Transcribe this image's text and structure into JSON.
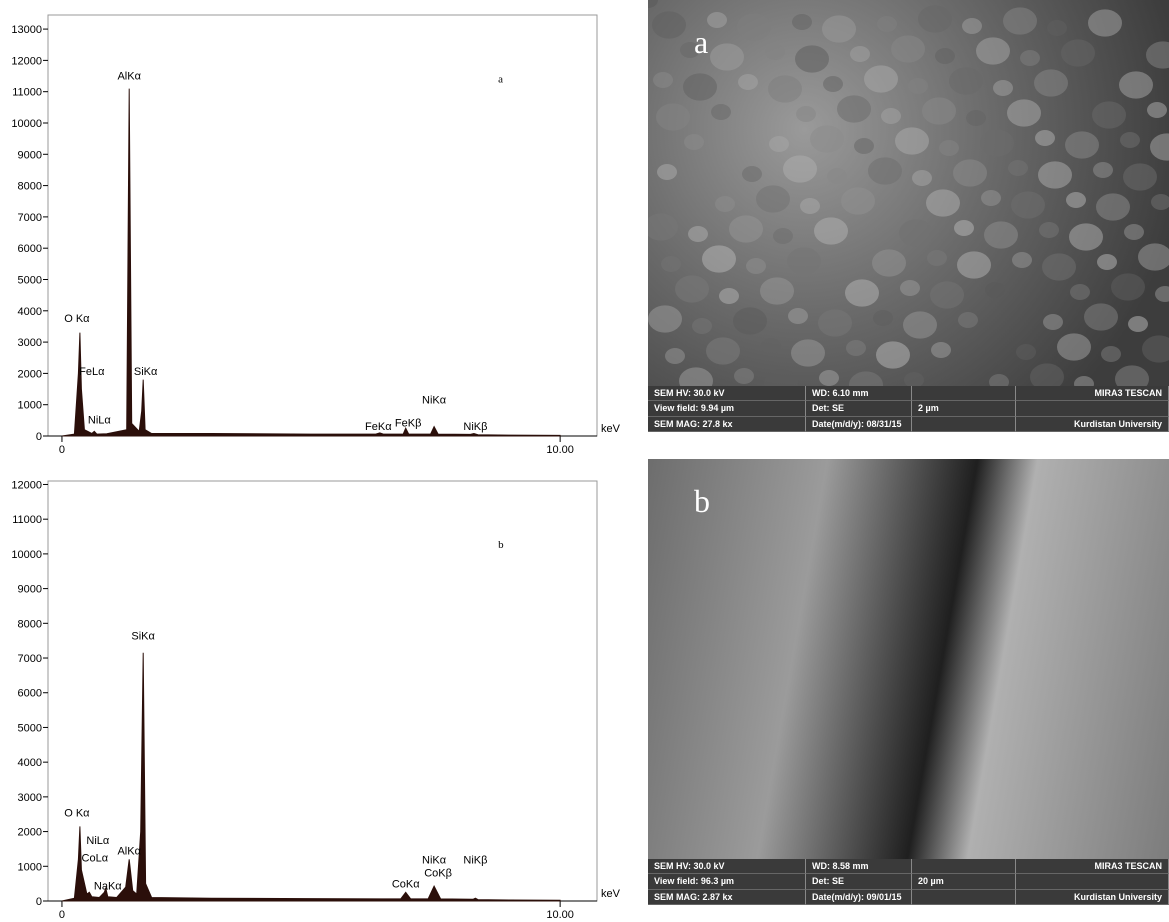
{
  "chart_data": [
    {
      "type": "area",
      "title": "a",
      "color": "#2b0f0a",
      "x_label": "keV",
      "x": [
        0,
        0.25,
        0.33,
        0.36,
        0.39,
        0.45,
        0.6,
        0.65,
        0.7,
        0.9,
        1.3,
        1.35,
        1.4,
        1.55,
        1.6,
        1.63,
        1.67,
        1.8,
        3,
        5,
        6.3,
        6.38,
        6.45,
        6.85,
        6.9,
        6.96,
        7.4,
        7.47,
        7.55,
        8.2,
        8.27,
        8.35,
        9,
        10
      ],
      "values": [
        0,
        60,
        2000,
        3300,
        1500,
        200,
        80,
        150,
        60,
        70,
        200,
        11100,
        400,
        150,
        800,
        1800,
        200,
        80,
        80,
        60,
        60,
        100,
        60,
        60,
        250,
        60,
        60,
        300,
        60,
        50,
        80,
        40,
        30,
        20
      ],
      "xlim": [
        -0.28,
        10.74
      ],
      "xticks": [
        0,
        {
          "value": 10,
          "label": "10.00"
        }
      ],
      "ylim": [
        0,
        13450
      ],
      "yticks": [
        0,
        1000,
        2000,
        3000,
        4000,
        5000,
        6000,
        7000,
        8000,
        9000,
        10000,
        11000,
        12000,
        13000
      ],
      "annotations": [
        {
          "text": "O Kα",
          "x": 0.3,
          "y": 3550
        },
        {
          "text": "FeLα",
          "x": 0.6,
          "y": 1850
        },
        {
          "text": "NiLα",
          "x": 0.75,
          "y": 300
        },
        {
          "text": "AlKα",
          "x": 1.35,
          "y": 11300
        },
        {
          "text": "SiKα",
          "x": 1.68,
          "y": 1850
        },
        {
          "text": "FeKα",
          "x": 6.35,
          "y": 100
        },
        {
          "text": "FeKβ",
          "x": 6.95,
          "y": 200
        },
        {
          "text": "NiKα",
          "x": 7.47,
          "y": 950
        },
        {
          "text": "NiKβ",
          "x": 8.3,
          "y": 100
        }
      ]
    },
    {
      "type": "area",
      "title": "b",
      "color": "#2b0f0a",
      "x_label": "keV",
      "x": [
        0,
        0.25,
        0.33,
        0.36,
        0.39,
        0.5,
        0.55,
        0.6,
        0.75,
        0.85,
        0.88,
        0.92,
        1.1,
        1.28,
        1.35,
        1.42,
        1.5,
        1.58,
        1.63,
        1.68,
        1.8,
        3,
        5,
        6.8,
        6.9,
        7,
        7.35,
        7.47,
        7.6,
        8.25,
        8.3,
        8.35,
        9,
        10
      ],
      "values": [
        0,
        80,
        1200,
        2150,
        900,
        200,
        250,
        120,
        100,
        250,
        370,
        120,
        100,
        400,
        1200,
        300,
        200,
        2000,
        7150,
        500,
        100,
        80,
        70,
        60,
        250,
        60,
        60,
        430,
        60,
        50,
        80,
        40,
        30,
        20
      ],
      "xlim": [
        -0.28,
        10.74
      ],
      "xticks": [
        0,
        {
          "value": 10,
          "label": "10.00"
        }
      ],
      "ylim": [
        0,
        12100
      ],
      "yticks": [
        0,
        1000,
        2000,
        3000,
        4000,
        5000,
        6000,
        7000,
        8000,
        9000,
        10000,
        11000,
        12000
      ],
      "annotations": [
        {
          "text": "O Kα",
          "x": 0.3,
          "y": 2350
        },
        {
          "text": "NiLα",
          "x": 0.72,
          "y": 1550
        },
        {
          "text": "CoLα",
          "x": 0.66,
          "y": 1050
        },
        {
          "text": "NaKα",
          "x": 0.92,
          "y": 250
        },
        {
          "text": "AlKα",
          "x": 1.35,
          "y": 1250
        },
        {
          "text": "SiKα",
          "x": 1.63,
          "y": 7450
        },
        {
          "text": "CoKα",
          "x": 6.9,
          "y": 300
        },
        {
          "text": "CoKβ",
          "x": 7.55,
          "y": 620
        },
        {
          "text": "NiKα",
          "x": 7.47,
          "y": 1000
        },
        {
          "text": "NiKβ",
          "x": 8.3,
          "y": 1000
        }
      ]
    }
  ],
  "images": [
    {
      "label": "a",
      "footer": [
        [
          "SEM HV: 30.0 kV",
          "WD: 6.10 mm",
          "",
          "MIRA3 TESCAN"
        ],
        [
          "View field: 9.94 µm",
          "Det: SE",
          "2 µm",
          ""
        ],
        [
          "SEM MAG: 27.8 kx",
          "Date(m/d/y): 08/31/15",
          "",
          "Kurdistan University"
        ]
      ]
    },
    {
      "label": "b",
      "footer": [
        [
          "SEM HV: 30.0 kV",
          "WD: 8.58 mm",
          "",
          "MIRA3 TESCAN"
        ],
        [
          "View field: 96.3 µm",
          "Det: SE",
          "20 µm",
          ""
        ],
        [
          "SEM MAG: 2.87 kx",
          "Date(m/d/y): 09/01/15",
          "",
          "Kurdistan University"
        ]
      ]
    }
  ]
}
